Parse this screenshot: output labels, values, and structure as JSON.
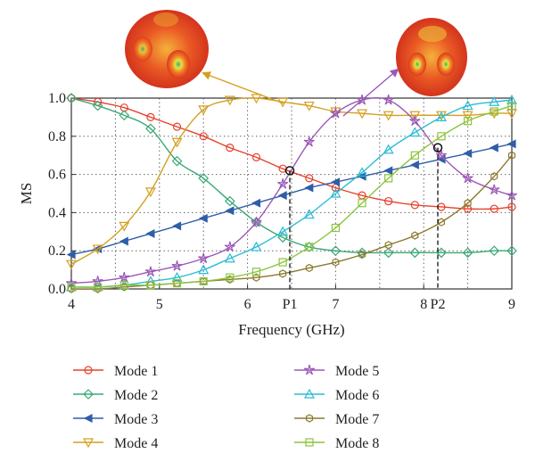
{
  "chart_data": {
    "type": "line",
    "xlabel": "Frequency (GHz)",
    "ylabel": "MS",
    "xlim": [
      4,
      9
    ],
    "ylim": [
      0,
      1.0
    ],
    "x_ticks": [
      {
        "value": 4,
        "label": "4"
      },
      {
        "value": 5,
        "label": "5"
      },
      {
        "value": 6,
        "label": "6"
      },
      {
        "value": 7,
        "label": "7"
      },
      {
        "value": 8,
        "label": "8"
      },
      {
        "value": 9,
        "label": "9"
      }
    ],
    "y_ticks": [
      {
        "value": 0.0,
        "label": "0.0"
      },
      {
        "value": 0.2,
        "label": "0.2"
      },
      {
        "value": 0.4,
        "label": "0.4"
      },
      {
        "value": 0.6,
        "label": "0.6"
      },
      {
        "value": 0.8,
        "label": "0.8"
      },
      {
        "value": 1.0,
        "label": "1.0"
      }
    ],
    "grid": true,
    "legend_position": "bottom",
    "markers": [
      {
        "label": "P1",
        "x": 6.48,
        "y": 0.62
      },
      {
        "label": "P2",
        "x": 8.16,
        "y": 0.74
      }
    ],
    "x": [
      4.0,
      4.3,
      4.6,
      4.9,
      5.2,
      5.5,
      5.8,
      6.1,
      6.4,
      6.7,
      7.0,
      7.3,
      7.6,
      7.9,
      8.2,
      8.5,
      8.8,
      9.0
    ],
    "series": [
      {
        "name": "Mode 1",
        "color": "#e8412c",
        "marker": "circle",
        "values": [
          1.0,
          0.98,
          0.95,
          0.9,
          0.85,
          0.8,
          0.74,
          0.69,
          0.63,
          0.58,
          0.53,
          0.49,
          0.46,
          0.44,
          0.43,
          0.42,
          0.42,
          0.43
        ]
      },
      {
        "name": "Mode 2",
        "color": "#3aa876",
        "marker": "diamond",
        "values": [
          1.0,
          0.96,
          0.91,
          0.84,
          0.67,
          0.58,
          0.46,
          0.35,
          0.27,
          0.22,
          0.2,
          0.19,
          0.19,
          0.19,
          0.19,
          0.19,
          0.2,
          0.2
        ]
      },
      {
        "name": "Mode 3",
        "color": "#2f5ea8",
        "marker": "triangle-left",
        "values": [
          0.18,
          0.21,
          0.25,
          0.29,
          0.33,
          0.37,
          0.41,
          0.45,
          0.49,
          0.53,
          0.56,
          0.59,
          0.62,
          0.65,
          0.68,
          0.71,
          0.74,
          0.76
        ]
      },
      {
        "name": "Mode 4",
        "color": "#d4a020",
        "marker": "triangle-down",
        "values": [
          0.13,
          0.21,
          0.33,
          0.51,
          0.77,
          0.94,
          0.99,
          1.0,
          0.98,
          0.96,
          0.93,
          0.92,
          0.91,
          0.91,
          0.91,
          0.91,
          0.92,
          0.92
        ]
      },
      {
        "name": "Mode 5",
        "color": "#9b59b6",
        "marker": "star",
        "values": [
          0.03,
          0.04,
          0.06,
          0.09,
          0.12,
          0.16,
          0.22,
          0.35,
          0.55,
          0.77,
          0.92,
          0.99,
          0.99,
          0.88,
          0.7,
          0.58,
          0.52,
          0.49
        ]
      },
      {
        "name": "Mode 6",
        "color": "#2bbcd4",
        "marker": "triangle-up",
        "values": [
          0.01,
          0.01,
          0.02,
          0.04,
          0.06,
          0.1,
          0.16,
          0.22,
          0.3,
          0.39,
          0.5,
          0.61,
          0.73,
          0.82,
          0.9,
          0.96,
          0.98,
          0.99
        ]
      },
      {
        "name": "Mode 7",
        "color": "#8b7a2e",
        "marker": "hexagon",
        "values": [
          0.0,
          0.0,
          0.01,
          0.02,
          0.03,
          0.04,
          0.05,
          0.06,
          0.08,
          0.11,
          0.14,
          0.18,
          0.23,
          0.28,
          0.35,
          0.45,
          0.59,
          0.7
        ]
      },
      {
        "name": "Mode 8",
        "color": "#8cc43e",
        "marker": "square",
        "values": [
          0.01,
          0.01,
          0.02,
          0.02,
          0.03,
          0.04,
          0.06,
          0.09,
          0.14,
          0.22,
          0.32,
          0.45,
          0.58,
          0.7,
          0.8,
          0.88,
          0.93,
          0.96
        ]
      }
    ]
  }
}
